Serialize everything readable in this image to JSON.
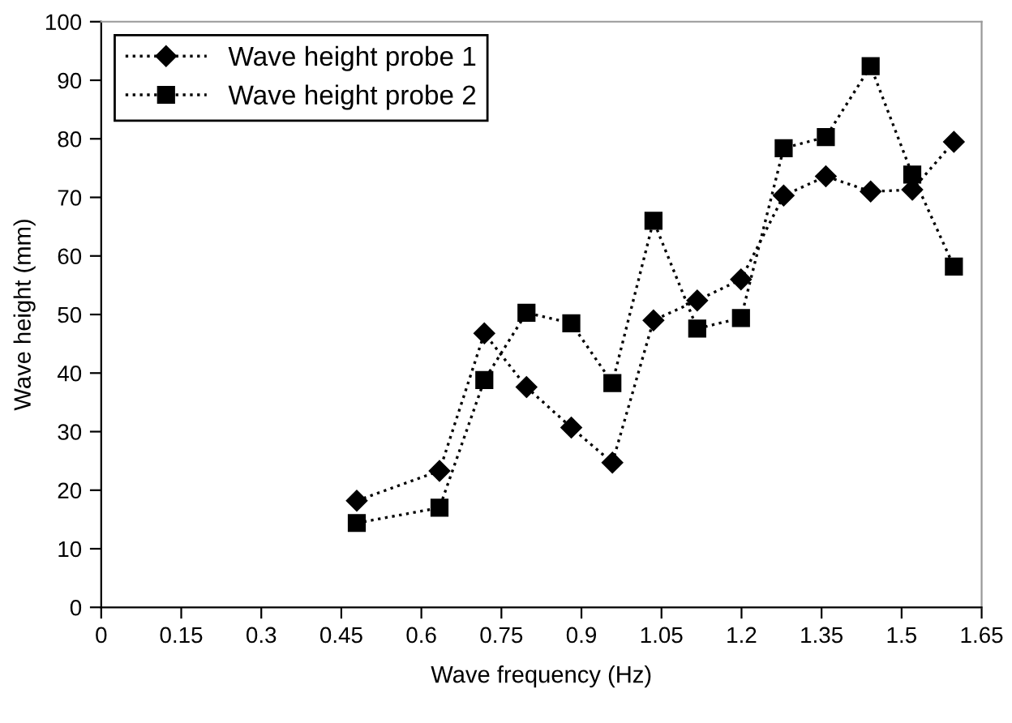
{
  "chart_data": {
    "type": "line",
    "xlabel": "Wave frequency (Hz)",
    "ylabel": "Wave height (mm)",
    "x": [
      0.479,
      0.634,
      0.718,
      0.797,
      0.881,
      0.958,
      1.035,
      1.117,
      1.199,
      1.279,
      1.358,
      1.442,
      1.52,
      1.598
    ],
    "series": [
      {
        "name": "Wave height probe 1",
        "color": "#000000",
        "marker": "diamond",
        "values": [
          18.2,
          23.3,
          46.8,
          37.6,
          30.7,
          24.7,
          49.0,
          52.4,
          56.0,
          70.3,
          73.6,
          71.0,
          71.3,
          79.5
        ]
      },
      {
        "name": "Wave height probe 2",
        "color": "#000000",
        "marker": "square",
        "values": [
          14.4,
          17.0,
          38.8,
          50.3,
          48.5,
          38.3,
          66.0,
          47.6,
          49.4,
          78.4,
          80.3,
          92.4,
          73.9,
          58.2
        ]
      }
    ],
    "xlim": [
      0,
      1.65
    ],
    "xticks": [
      0,
      0.15,
      0.3,
      0.45,
      0.6,
      0.75,
      0.9,
      1.05,
      1.2,
      1.35,
      1.5,
      1.65
    ],
    "ylim": [
      0,
      100
    ],
    "yticks": [
      0,
      10,
      20,
      30,
      40,
      50,
      60,
      70,
      80,
      90,
      100
    ],
    "grid": false,
    "legend": "top left",
    "line_style": "dotted"
  }
}
